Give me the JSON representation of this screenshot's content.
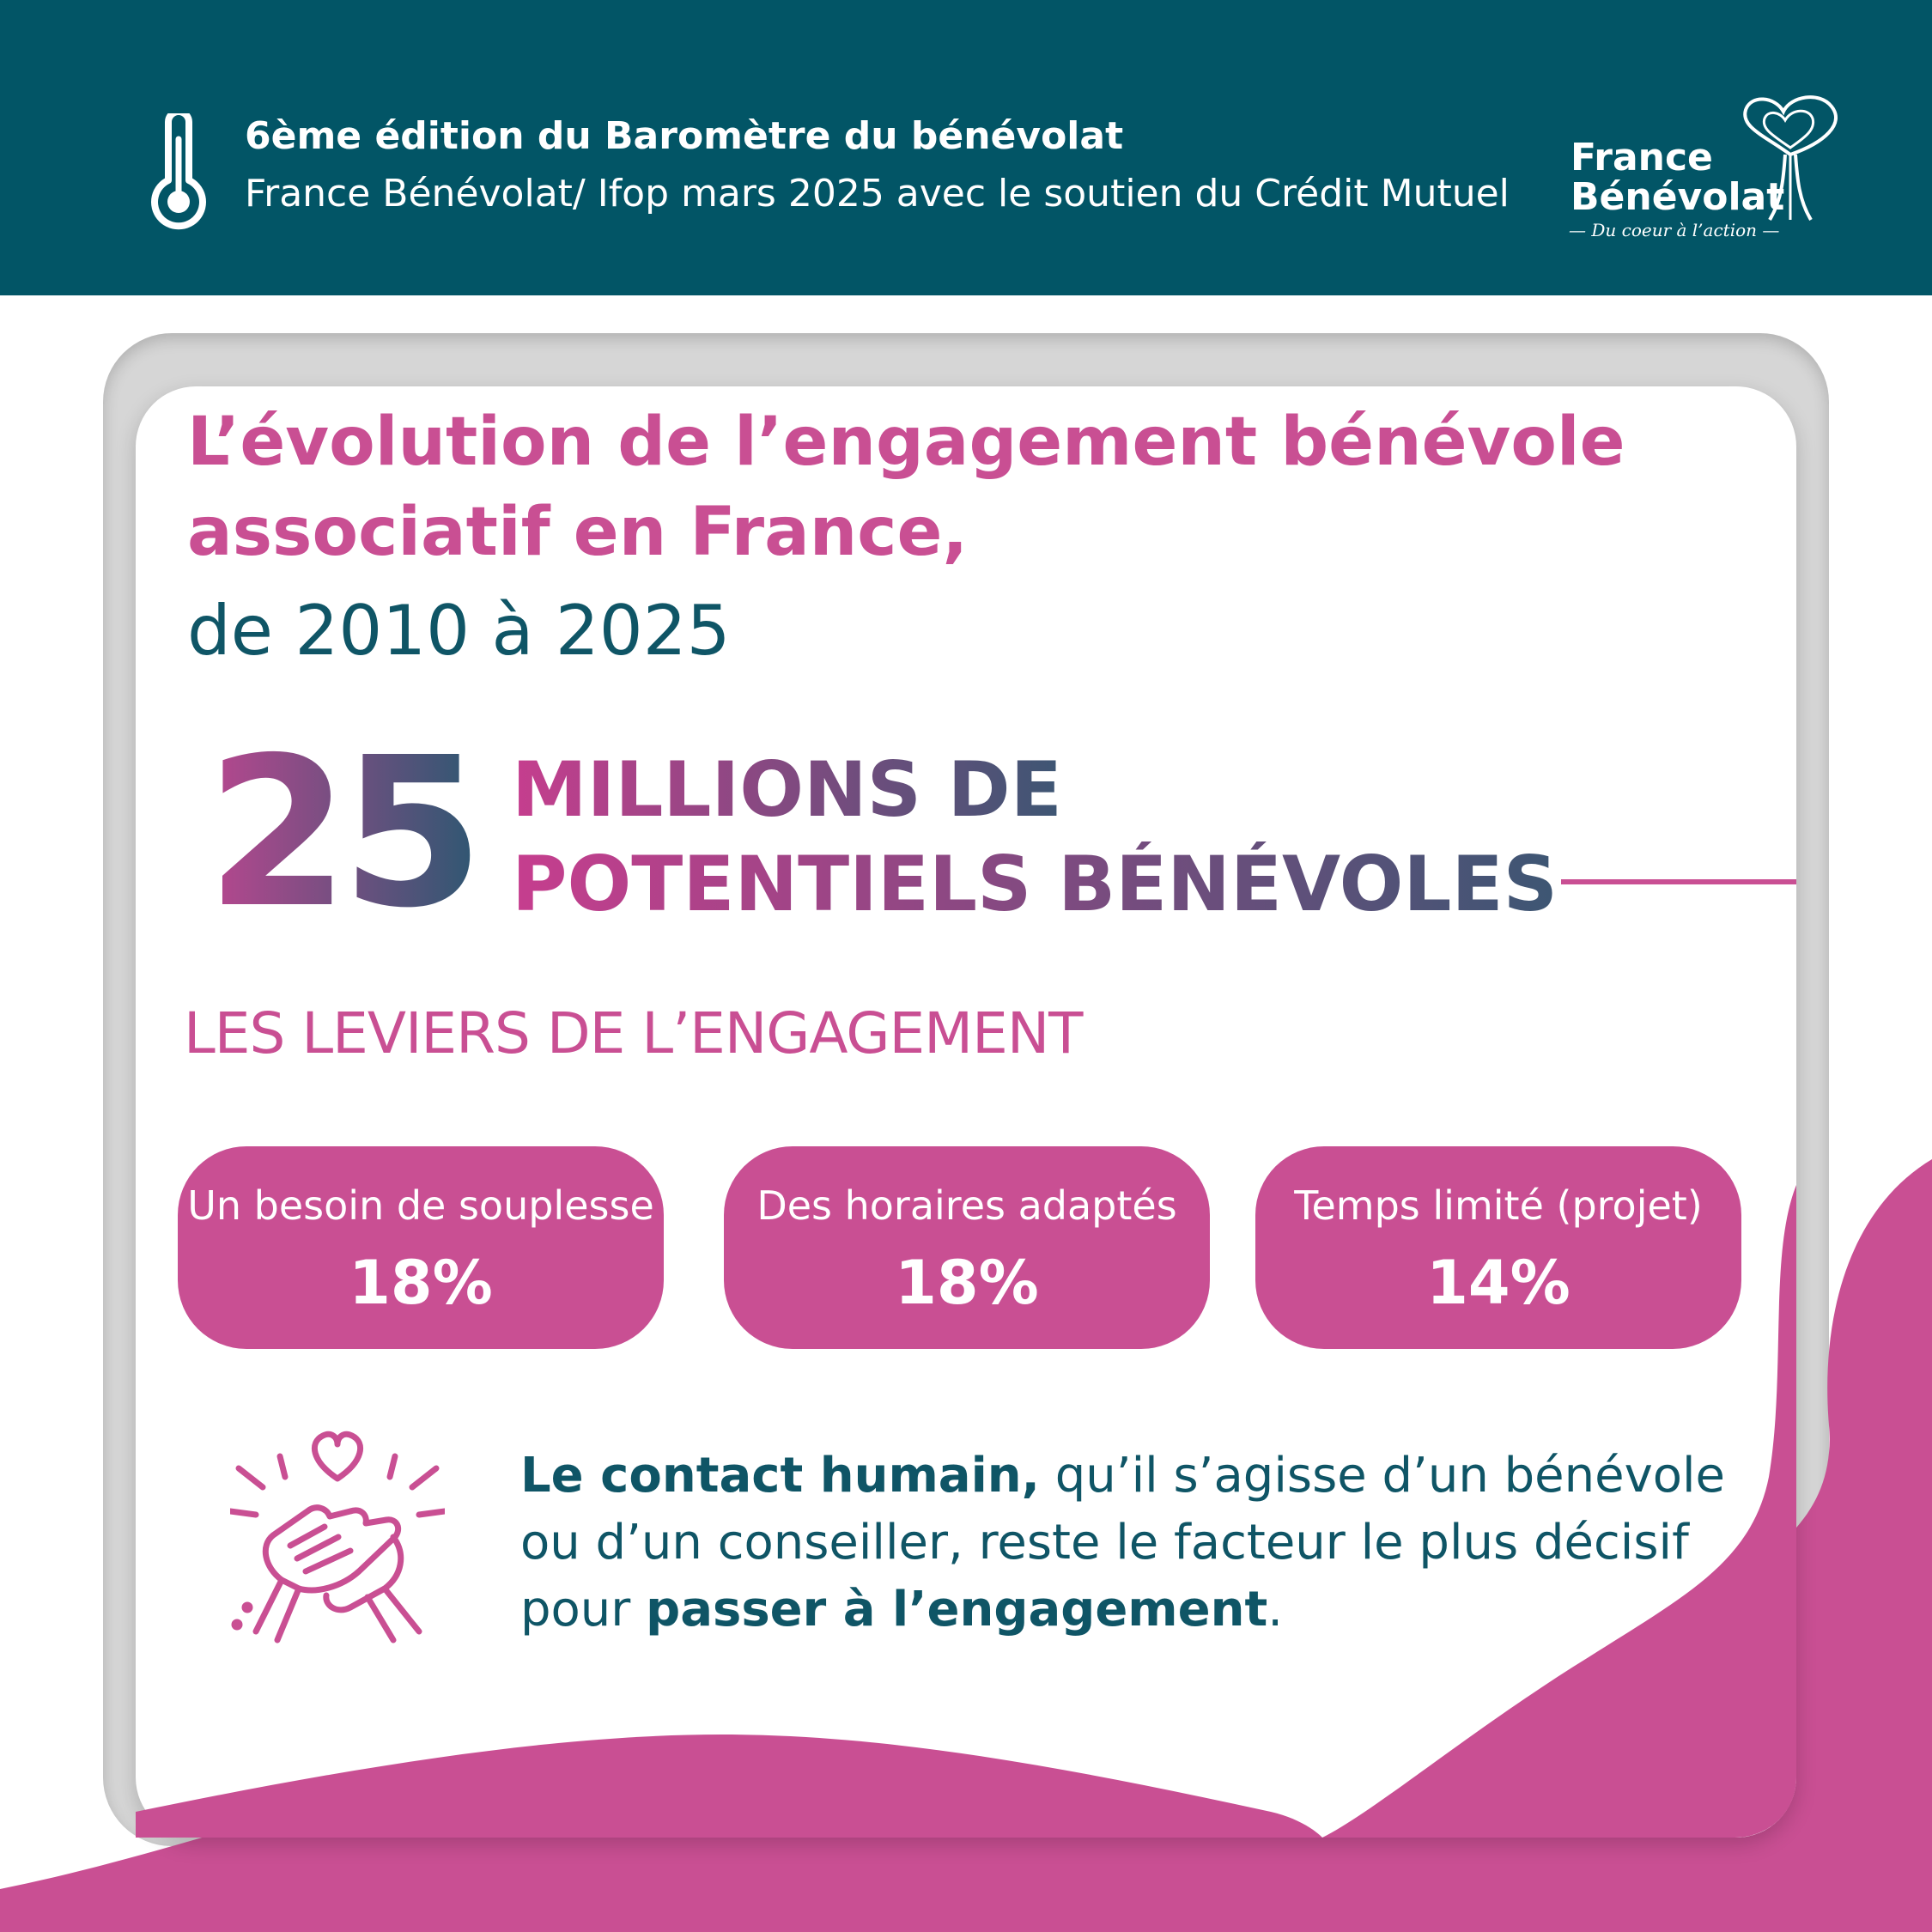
{
  "header": {
    "line1": "6ème édition du Baromètre du bénévolat",
    "line2": "France Bénévolat/ Ifop mars 2025 avec le soutien du Crédit Mutuel",
    "logo": {
      "name_line1": "France",
      "name_line2": "Bénévolat",
      "tagline": "— Du coeur à l’action —"
    }
  },
  "main": {
    "title_line1": "L’évolution de l’engagement bénévole",
    "title_line2": "associatif en France,",
    "title_line3": "de 2010 à 2025",
    "big_number": "25",
    "big_label_line1": "MILLIONS DE",
    "big_label_line2": "POTENTIELS BÉNÉVOLES",
    "section_title": "LES LEVIERS DE L’ENGAGEMENT",
    "levers": [
      {
        "label": "Un besoin de souplesse",
        "value": "18%"
      },
      {
        "label": "Des horaires adaptés",
        "value": "18%"
      },
      {
        "label": "Temps limité (projet)",
        "value": "14%"
      }
    ],
    "contact": {
      "bold1": "Le contact humain,",
      "text1": " qu’il s’agisse d’un bénévole ou d’un conseiller, reste le facteur le plus décisif pour ",
      "bold2": "passer à l’engagement",
      "end": "."
    }
  },
  "colors": {
    "header_bg": "#025566",
    "pink": "#c94f93",
    "teal": "#0f5566"
  },
  "icons": [
    "thermometer-icon",
    "heart-tree-logo-icon",
    "handshake-heart-icon"
  ]
}
